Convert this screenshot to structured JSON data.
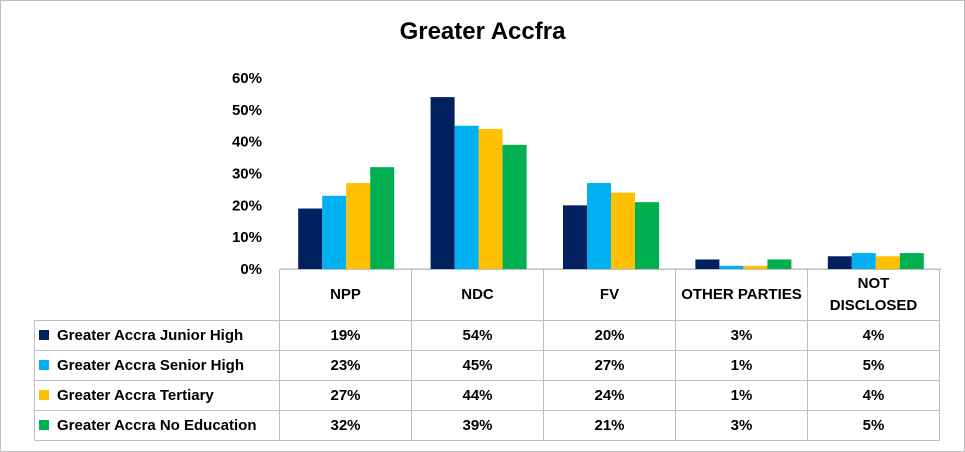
{
  "chart_data": {
    "type": "bar",
    "title": "Greater Accfra",
    "categories": [
      "NPP",
      "NDC",
      "FV",
      "OTHER PARTIES",
      "NOT DISCLOSED"
    ],
    "category_lines": [
      [
        "NPP"
      ],
      [
        "NDC"
      ],
      [
        "FV"
      ],
      [
        "OTHER PARTIES"
      ],
      [
        "NOT",
        "DISCLOSED"
      ]
    ],
    "ylim": [
      0,
      60
    ],
    "yticks": [
      "0%",
      "10%",
      "20%",
      "30%",
      "40%",
      "50%",
      "60%"
    ],
    "series": [
      {
        "name": "Greater Accra Junior High",
        "color": "#002060",
        "values": [
          19,
          54,
          20,
          3,
          4
        ],
        "labels": [
          "19%",
          "54%",
          "20%",
          "3%",
          "4%"
        ]
      },
      {
        "name": "Greater Accra Senior High",
        "color": "#00B0F0",
        "values": [
          23,
          45,
          27,
          1,
          5
        ],
        "labels": [
          "23%",
          "45%",
          "27%",
          "1%",
          "5%"
        ]
      },
      {
        "name": "Greater Accra Tertiary",
        "color": "#FFC000",
        "values": [
          27,
          44,
          24,
          1,
          4
        ],
        "labels": [
          "27%",
          "44%",
          "24%",
          "1%",
          "4%"
        ]
      },
      {
        "name": "Greater Accra No Education",
        "color": "#00B050",
        "values": [
          32,
          39,
          21,
          3,
          5
        ],
        "labels": [
          "32%",
          "39%",
          "21%",
          "3%",
          "5%"
        ]
      }
    ],
    "grid": false,
    "legend": "data-table"
  }
}
